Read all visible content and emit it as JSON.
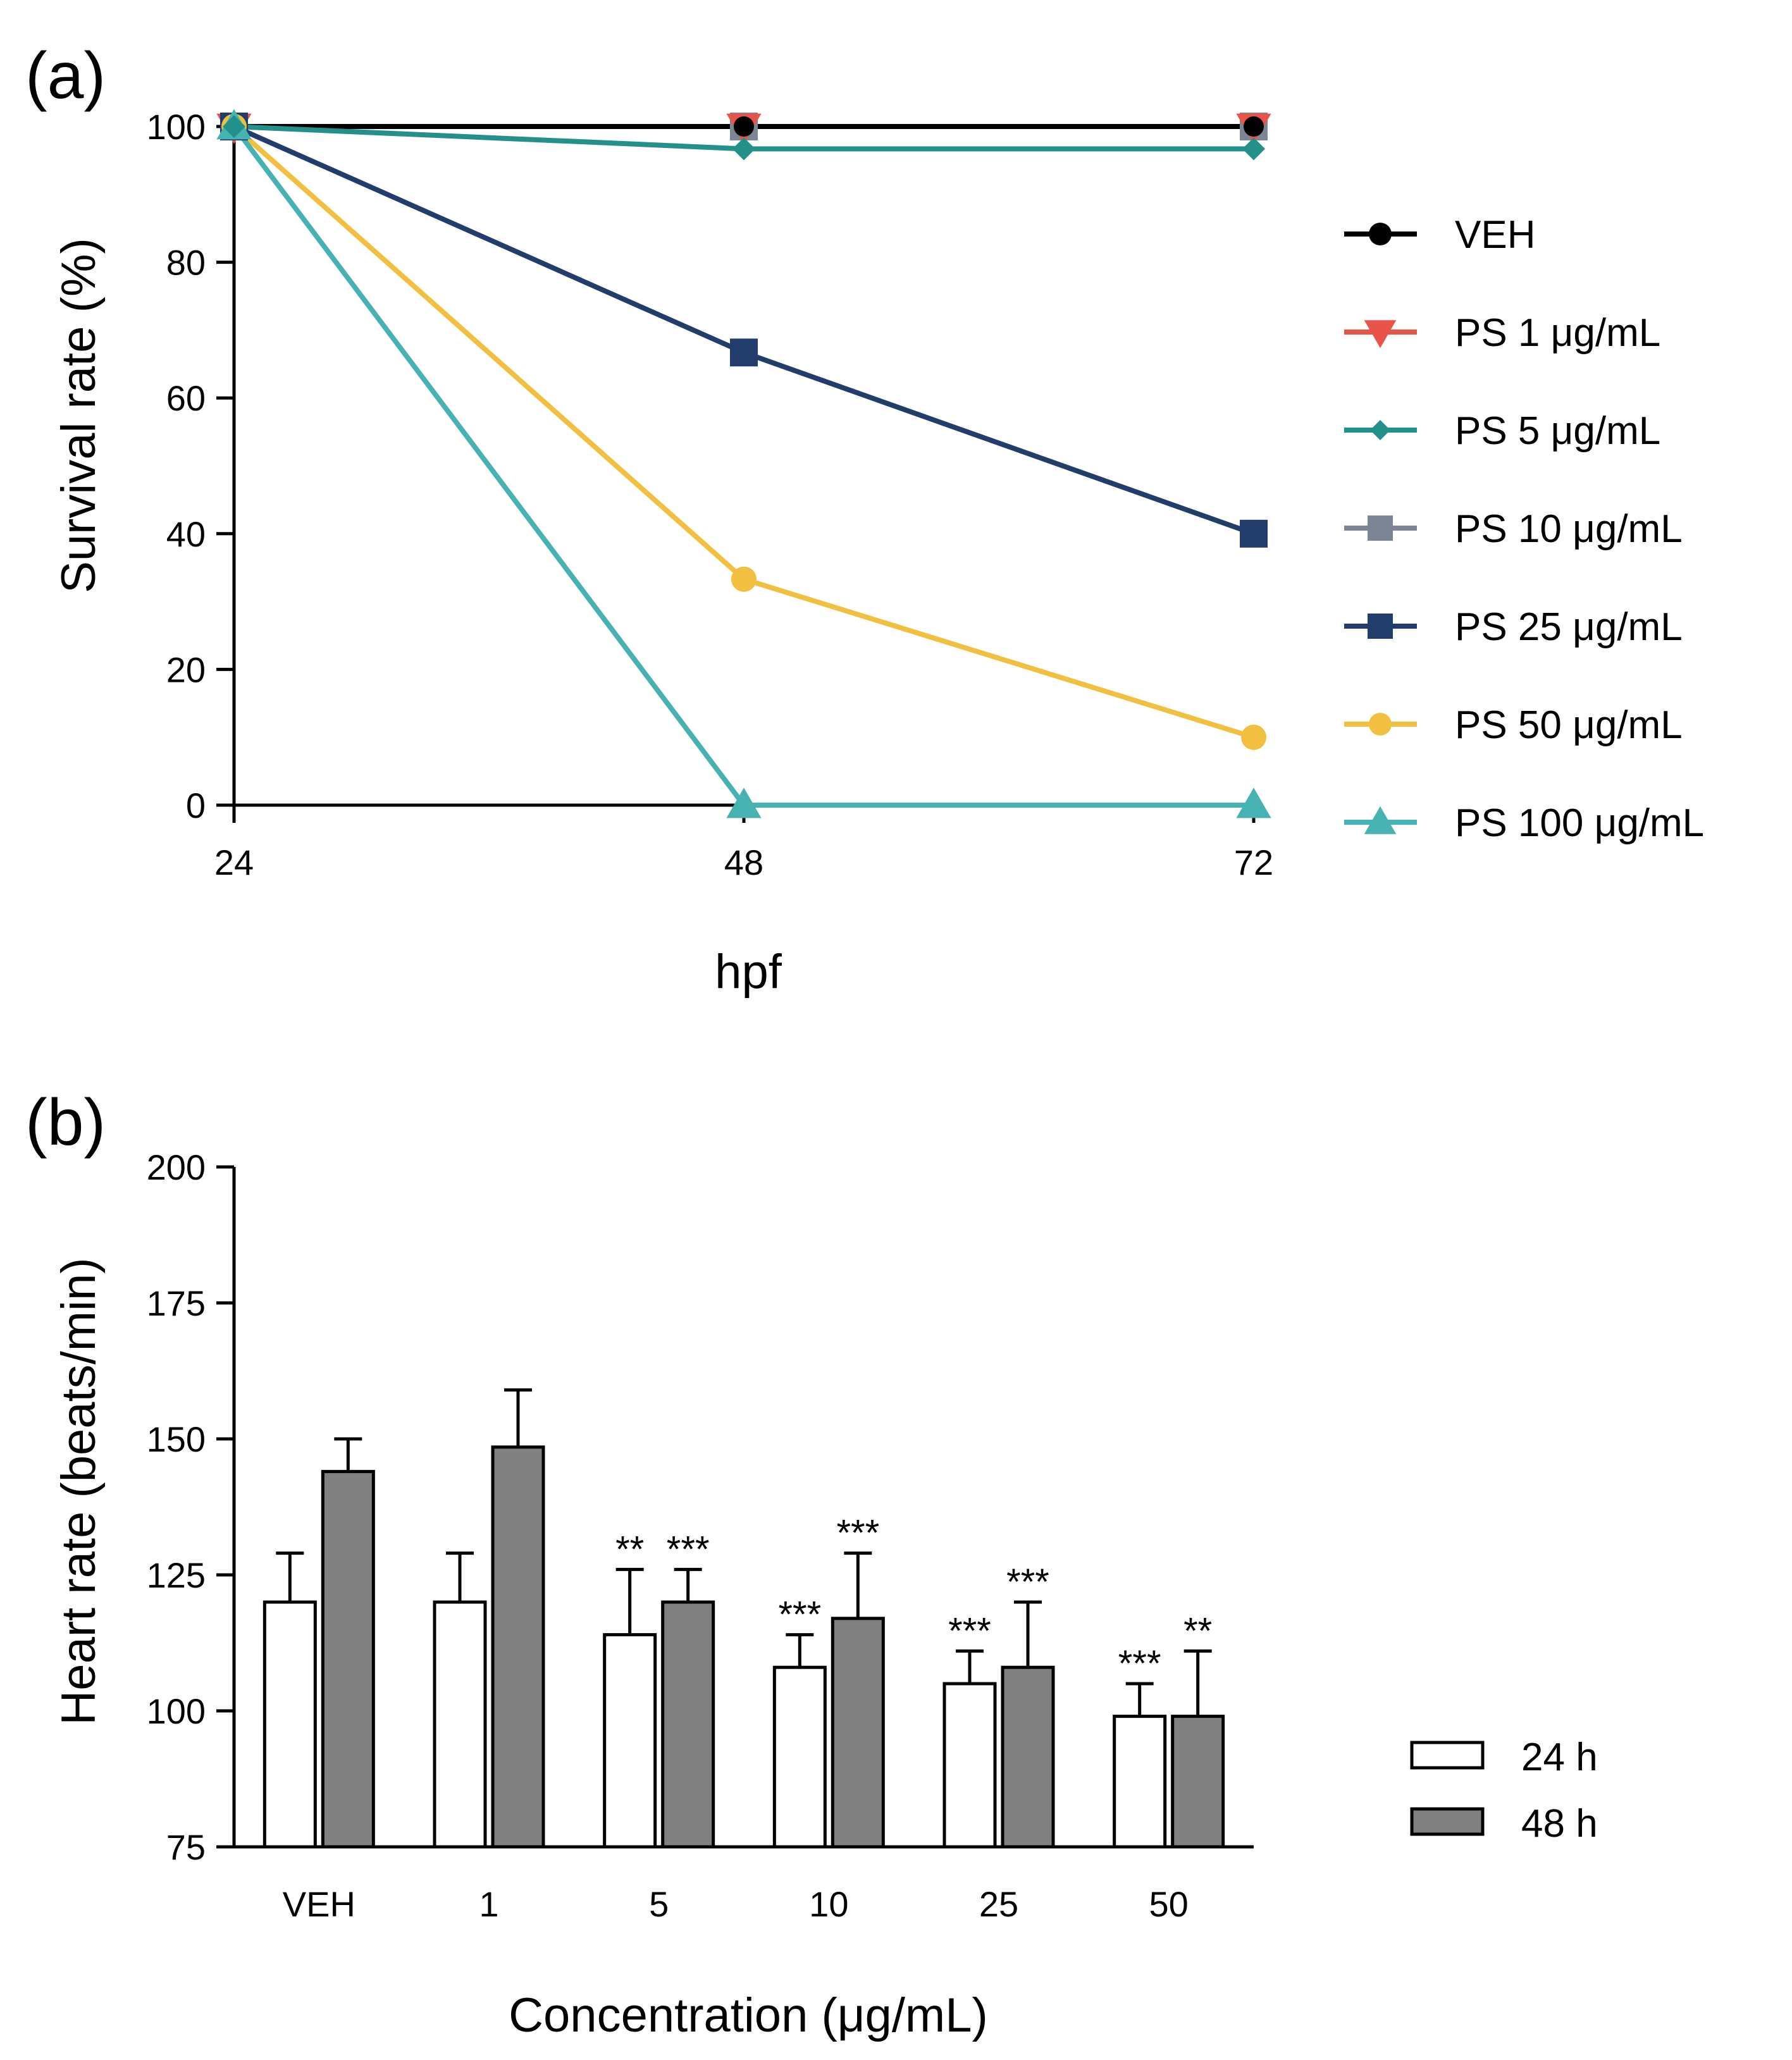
{
  "chart_data": [
    {
      "panel_label": "(a)",
      "type": "line",
      "xlabel": "hpf",
      "ylabel": "Survival rate (%)",
      "x": [
        24,
        48,
        72
      ],
      "x_ticks": [
        "24",
        "48",
        "72"
      ],
      "ylim": [
        0,
        100
      ],
      "y_ticks": [
        "0",
        "20",
        "40",
        "60",
        "80",
        "100"
      ],
      "y_tick_values": [
        0,
        20,
        40,
        60,
        80,
        100
      ],
      "grid": false,
      "legend_position": "right",
      "series": [
        {
          "name": "VEH",
          "values": [
            100,
            100,
            100
          ],
          "color": "#000000",
          "marker": "circle"
        },
        {
          "name": "PS 1 μg/mL",
          "values": [
            100,
            100,
            100
          ],
          "color": "#e8534a",
          "marker": "triangle-down"
        },
        {
          "name": "PS 5 μg/mL",
          "values": [
            100,
            96.7,
            96.7
          ],
          "color": "#24908a",
          "marker": "diamond"
        },
        {
          "name": "PS 10 μg/mL",
          "values": [
            100,
            100,
            100
          ],
          "color": "#7c8596",
          "marker": "square"
        },
        {
          "name": "PS 25 μg/mL",
          "values": [
            100,
            66.7,
            40
          ],
          "color": "#223c6b",
          "marker": "square"
        },
        {
          "name": "PS 50 μg/mL",
          "values": [
            100,
            33.3,
            10
          ],
          "color": "#f2c040",
          "marker": "circle"
        },
        {
          "name": "PS 100 μg/mL",
          "values": [
            100,
            0,
            0
          ],
          "color": "#47b2b2",
          "marker": "triangle-up"
        }
      ]
    },
    {
      "panel_label": "(b)",
      "type": "bar",
      "xlabel": "Concentration (μg/mL)",
      "ylabel": "Heart rate (beats/min)",
      "categories": [
        "VEH",
        "1",
        "5",
        "10",
        "25",
        "50"
      ],
      "ylim": [
        75,
        200
      ],
      "y_ticks": [
        "75",
        "100",
        "125",
        "150",
        "175",
        "200"
      ],
      "y_tick_values": [
        75,
        100,
        125,
        150,
        175,
        200
      ],
      "grid": false,
      "legend_position": "right",
      "series": [
        {
          "name": "24 h",
          "color": "#ffffff",
          "values": [
            120,
            120,
            114,
            108,
            105,
            99
          ],
          "errors": [
            9,
            9,
            12,
            6,
            6,
            6
          ],
          "significance": [
            "",
            "",
            "**",
            "***",
            "***",
            "***"
          ]
        },
        {
          "name": "48 h",
          "color": "#808080",
          "values": [
            144,
            148.5,
            120,
            117,
            108,
            99
          ],
          "errors": [
            6,
            10.5,
            6,
            12,
            12,
            12
          ],
          "significance": [
            "",
            "",
            "***",
            "***",
            "***",
            "**"
          ]
        }
      ]
    }
  ]
}
